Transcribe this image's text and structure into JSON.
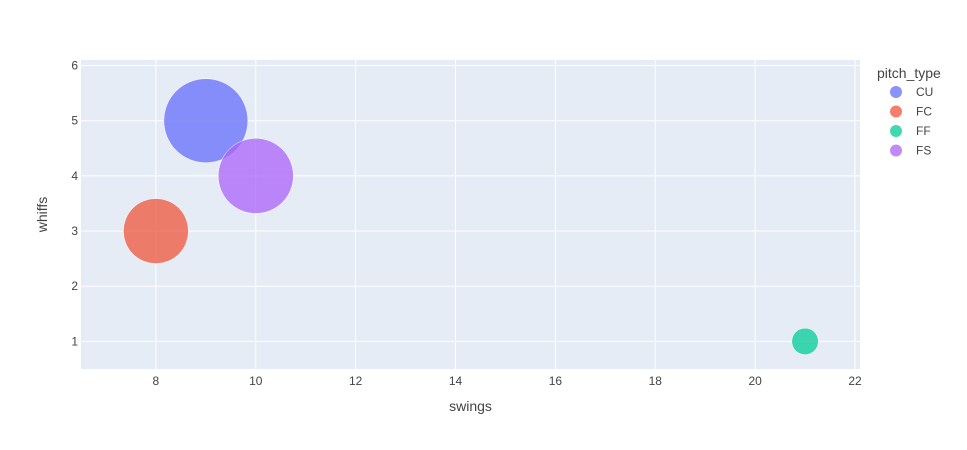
{
  "chart_data": {
    "type": "scatter",
    "xlabel": "swings",
    "ylabel": "whiffs",
    "xlim": [
      6.5,
      22.1
    ],
    "ylim": [
      0.5,
      6.1
    ],
    "xticks": [
      8,
      10,
      12,
      14,
      16,
      18,
      20,
      22
    ],
    "yticks": [
      1,
      2,
      3,
      4,
      5,
      6
    ],
    "grid": true,
    "legend": {
      "title": "pitch_type",
      "placement": "right"
    },
    "series": [
      {
        "name": "CU",
        "color": "#636efa",
        "x": [
          9
        ],
        "y": [
          5
        ],
        "size": [
          5
        ]
      },
      {
        "name": "FC",
        "color": "#EF553B",
        "x": [
          8
        ],
        "y": [
          3
        ],
        "size": [
          3
        ]
      },
      {
        "name": "FF",
        "color": "#00cc96",
        "x": [
          21
        ],
        "y": [
          1
        ],
        "size": [
          0.5
        ]
      },
      {
        "name": "FS",
        "color": "#ab63fa",
        "x": [
          10
        ],
        "y": [
          4
        ],
        "size": [
          4
        ]
      }
    ]
  }
}
